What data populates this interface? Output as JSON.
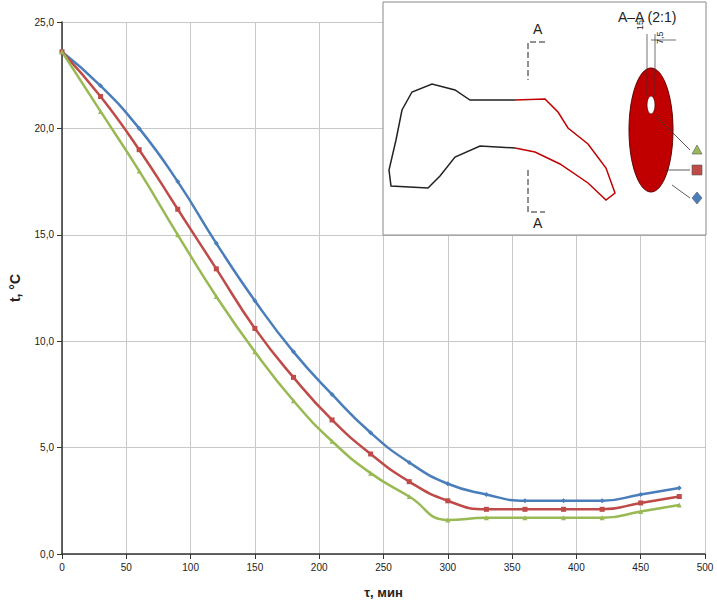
{
  "chart_data": {
    "type": "line",
    "x_label": "τ, мин",
    "y_label": "t, °C",
    "x": [
      0,
      30,
      60,
      90,
      120,
      150,
      180,
      210,
      240,
      270,
      300,
      330,
      360,
      390,
      420,
      450,
      480
    ],
    "series": [
      {
        "color": "#4a7ebb",
        "marker": "diamond",
        "values": [
          23.6,
          22.0,
          20.0,
          17.5,
          14.6,
          11.9,
          9.5,
          7.5,
          5.7,
          4.3,
          3.3,
          2.8,
          2.5,
          2.5,
          2.5,
          2.8,
          3.1
        ]
      },
      {
        "color": "#be4b48",
        "marker": "square",
        "values": [
          23.6,
          21.5,
          19.0,
          16.2,
          13.4,
          10.6,
          8.3,
          6.3,
          4.7,
          3.4,
          2.5,
          2.1,
          2.1,
          2.1,
          2.1,
          2.4,
          2.7
        ]
      },
      {
        "color": "#98b954",
        "marker": "triangle",
        "values": [
          23.6,
          20.8,
          18.0,
          15.0,
          12.1,
          9.5,
          7.2,
          5.3,
          3.8,
          2.7,
          1.6,
          1.7,
          1.7,
          1.7,
          1.7,
          2.0,
          2.3
        ]
      }
    ],
    "xlim": [
      0,
      500
    ],
    "xticks": [
      0,
      50,
      100,
      150,
      200,
      250,
      300,
      350,
      400,
      450,
      500
    ],
    "ylim": [
      0,
      25
    ],
    "yticks": [
      {
        "value": 0,
        "label": "0,0"
      },
      {
        "value": 5,
        "label": "5,0"
      },
      {
        "value": 10,
        "label": "10,0"
      },
      {
        "value": 15,
        "label": "15,0"
      },
      {
        "value": 20,
        "label": "20,0"
      },
      {
        "value": 25,
        "label": "25,0"
      }
    ],
    "grid": true,
    "annotations": [
      "A",
      "A",
      "A–A (2:1)",
      "15",
      "7,5"
    ]
  }
}
